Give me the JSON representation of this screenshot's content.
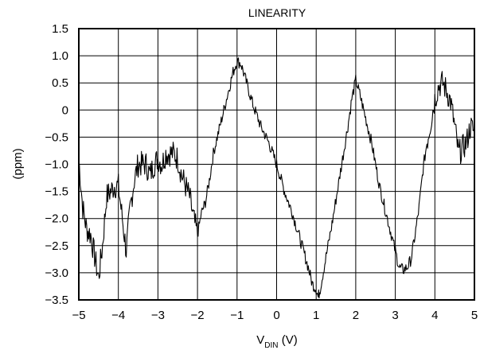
{
  "chart_data": {
    "type": "line",
    "title": "LINEARITY",
    "xlabel_main": "V",
    "xlabel_sub": "DIN",
    "xlabel_unit": " (V)",
    "ylabel": "(ppm)",
    "xlim": [
      -5,
      5
    ],
    "ylim": [
      -3.5,
      1.5
    ],
    "grid": true,
    "x_ticks": [
      -5,
      -4,
      -3,
      -2,
      -1,
      0,
      1,
      2,
      3,
      4,
      5
    ],
    "x_tick_labels": [
      "−5",
      "−4",
      "−3",
      "−2",
      "−1",
      "0",
      "1",
      "2",
      "3",
      "4",
      "5"
    ],
    "y_ticks": [
      1.5,
      1.0,
      0.5,
      0,
      -0.5,
      -1.0,
      -1.5,
      -2.0,
      -2.5,
      -3.0,
      -3.5
    ],
    "y_tick_labels": [
      "1.5",
      "1.0",
      "0.5",
      "0",
      "−0.5",
      "−1.0",
      "−1.5",
      "−2.0",
      "−2.5",
      "−3.0",
      "−3.5"
    ],
    "series": [
      {
        "color": "#000000",
        "noise": 0.22,
        "x": [
          -5.0,
          -4.9,
          -4.8,
          -4.7,
          -4.6,
          -4.5,
          -4.4,
          -4.3,
          -4.2,
          -4.1,
          -4.0,
          -3.9,
          -3.8,
          -3.7,
          -3.6,
          -3.5,
          -3.4,
          -3.3,
          -3.2,
          -3.1,
          -3.0,
          -2.9,
          -2.8,
          -2.7,
          -2.6,
          -2.5,
          -2.4,
          -2.3,
          -2.2,
          -2.1,
          -2.0,
          -1.9,
          -1.8,
          -1.7,
          -1.6,
          -1.5,
          -1.4,
          -1.3,
          -1.2,
          -1.1,
          -1.0,
          -0.9,
          -0.8,
          -0.6,
          -0.4,
          -0.2,
          0.0,
          0.2,
          0.4,
          0.6,
          0.8,
          0.9,
          1.0,
          1.05,
          1.1,
          1.2,
          1.4,
          1.6,
          1.8,
          1.9,
          2.0,
          2.1,
          2.2,
          2.4,
          2.6,
          2.8,
          3.0,
          3.1,
          3.2,
          3.3,
          3.4,
          3.5,
          3.6,
          3.7,
          3.8,
          3.9,
          4.0,
          4.1,
          4.2,
          4.3,
          4.4,
          4.5,
          4.6,
          4.7,
          4.8,
          4.9,
          5.0
        ],
        "y": [
          -0.9,
          -1.8,
          -2.2,
          -2.3,
          -2.7,
          -3.1,
          -2.5,
          -1.6,
          -1.5,
          -1.4,
          -1.4,
          -2.0,
          -2.6,
          -1.8,
          -1.3,
          -1.0,
          -1.0,
          -1.0,
          -1.2,
          -1.0,
          -0.9,
          -1.0,
          -0.8,
          -0.8,
          -0.8,
          -0.9,
          -1.2,
          -1.4,
          -1.6,
          -2.0,
          -2.3,
          -1.9,
          -1.7,
          -1.3,
          -0.8,
          -0.5,
          -0.2,
          0.1,
          0.4,
          0.7,
          0.9,
          0.85,
          0.6,
          0.1,
          -0.3,
          -0.6,
          -1.0,
          -1.5,
          -1.9,
          -2.4,
          -2.9,
          -3.2,
          -3.3,
          -3.45,
          -3.3,
          -2.9,
          -2.1,
          -1.2,
          -0.3,
          0.2,
          0.55,
          0.3,
          0.0,
          -0.6,
          -1.4,
          -2.0,
          -2.6,
          -2.9,
          -2.95,
          -2.9,
          -2.75,
          -2.3,
          -1.8,
          -1.1,
          -0.6,
          -0.2,
          0.2,
          0.45,
          0.5,
          0.35,
          0.15,
          -0.3,
          -0.8,
          -0.7,
          -0.6,
          -0.3,
          -0.4
        ]
      }
    ]
  }
}
